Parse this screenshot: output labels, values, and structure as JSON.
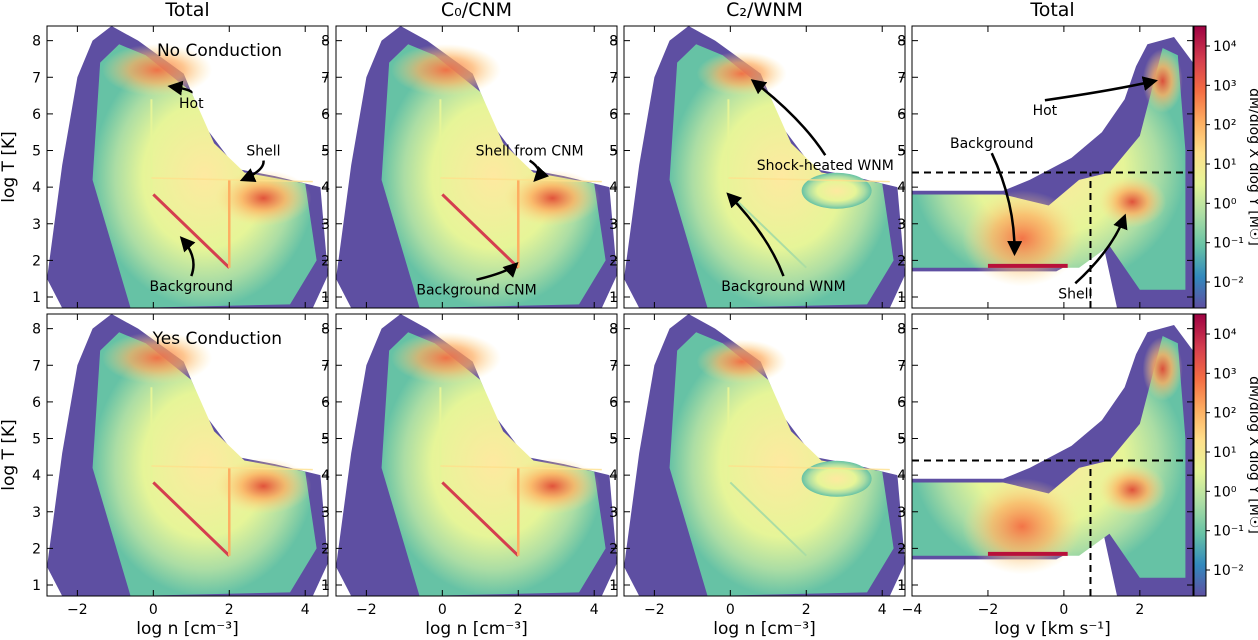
{
  "column_titles": [
    "Total",
    "C₀/CNM",
    "C₂/WNM",
    "Total"
  ],
  "row_titles": [
    "No Conduction",
    "Yes Conduction"
  ],
  "colors": {
    "background_purple": "#5e4fa2",
    "colormap": [
      "#5e4fa2",
      "#3288bd",
      "#66c2a5",
      "#abdda4",
      "#e6f598",
      "#fee08b",
      "#fdae61",
      "#f46d43",
      "#d53e4f",
      "#9e0142"
    ]
  },
  "chart_data": [
    {
      "type": "heatmap",
      "panel": "top-left",
      "title": "Total",
      "annotation_title": "No Conduction",
      "xlabel": "",
      "ylabel": "log T [K]",
      "xlim": [
        -2.8,
        4.6
      ],
      "ylim": [
        0.7,
        8.4
      ],
      "xticks": [
        -2,
        0,
        2,
        4
      ],
      "yticks": [
        1,
        2,
        3,
        4,
        5,
        6,
        7,
        8
      ],
      "annotations": [
        {
          "text": "Hot",
          "x": 1.0,
          "y": 6.3,
          "arrow_to": [
            0.45,
            6.75
          ]
        },
        {
          "text": "Shell",
          "x": 2.9,
          "y": 5.0,
          "arrow_to": [
            2.35,
            4.2
          ]
        },
        {
          "text": "Background",
          "x": 1.0,
          "y": 1.3,
          "arrow_to": [
            0.75,
            2.6
          ]
        }
      ]
    },
    {
      "type": "heatmap",
      "panel": "top-middle-left",
      "title": "C₀/CNM",
      "xlim": [
        -2.8,
        4.6
      ],
      "ylim": [
        0.7,
        8.4
      ],
      "xticks": [
        -2,
        0,
        2,
        4
      ],
      "yticks": [
        1,
        2,
        3,
        4,
        5,
        6,
        7,
        8
      ],
      "annotations": [
        {
          "text": "Shell from CNM",
          "x": 2.3,
          "y": 5.0,
          "arrow_to": [
            2.45,
            4.2
          ]
        },
        {
          "text": "Background CNM",
          "x": 0.9,
          "y": 1.2,
          "arrow_to": [
            1.95,
            1.9
          ]
        }
      ]
    },
    {
      "type": "heatmap",
      "panel": "top-middle-right",
      "title": "C₂/WNM",
      "xlim": [
        -2.8,
        4.6
      ],
      "ylim": [
        0.7,
        8.4
      ],
      "xticks": [
        -2,
        0,
        2,
        4
      ],
      "yticks": [
        1,
        2,
        3,
        4,
        5,
        6,
        7,
        8
      ],
      "annotations": [
        {
          "text": "Shock-heated WNM",
          "x": 2.5,
          "y": 4.6,
          "arrow_to": [
            0.6,
            6.9
          ]
        },
        {
          "text": "Background WNM",
          "x": 1.4,
          "y": 1.3,
          "arrow_to": [
            -0.05,
            3.8
          ]
        }
      ]
    },
    {
      "type": "heatmap",
      "panel": "top-right",
      "title": "Total",
      "xlim": [
        -4,
        3.4
      ],
      "ylim": [
        0.7,
        8.4
      ],
      "xticks": [
        -4,
        -2,
        0,
        2
      ],
      "yticks": [
        1,
        2,
        3,
        4,
        5,
        6,
        7,
        8
      ],
      "dashed_lines": {
        "y": 4.4,
        "x": 0.7
      },
      "annotations": [
        {
          "text": "Hot",
          "x": -0.5,
          "y": 6.1,
          "arrow_to": [
            2.4,
            6.9
          ]
        },
        {
          "text": "Background",
          "x": -1.9,
          "y": 5.2,
          "arrow_to": [
            -1.3,
            2.2
          ]
        },
        {
          "text": "Shell",
          "x": 0.3,
          "y": 1.1,
          "arrow_to": [
            1.6,
            3.2
          ]
        }
      ],
      "colorbar": {
        "label": "dM/dlog X dlog Y [M☉]",
        "scale": "log",
        "ticks": [
          "10⁻²",
          "10⁻¹",
          "10⁰",
          "10¹",
          "10²",
          "10³",
          "10⁴"
        ]
      }
    },
    {
      "type": "heatmap",
      "panel": "bottom-left",
      "annotation_title": "Yes Conduction",
      "xlabel": "log n [cm⁻³]",
      "ylabel": "log T [K]",
      "xlim": [
        -2.8,
        4.6
      ],
      "ylim": [
        0.7,
        8.4
      ],
      "xticks": [
        -2,
        0,
        2,
        4
      ],
      "yticks": [
        1,
        2,
        3,
        4,
        5,
        6,
        7,
        8
      ]
    },
    {
      "type": "heatmap",
      "panel": "bottom-middle-left",
      "xlabel": "log n [cm⁻³]",
      "xlim": [
        -2.8,
        4.6
      ],
      "ylim": [
        0.7,
        8.4
      ],
      "xticks": [
        -2,
        0,
        2,
        4
      ],
      "yticks": [
        1,
        2,
        3,
        4,
        5,
        6,
        7,
        8
      ]
    },
    {
      "type": "heatmap",
      "panel": "bottom-middle-right",
      "xlabel": "log n [cm⁻³]",
      "xlim": [
        -2.8,
        4.6
      ],
      "ylim": [
        0.7,
        8.4
      ],
      "xticks": [
        -2,
        0,
        2,
        4
      ],
      "yticks": [
        1,
        2,
        3,
        4,
        5,
        6,
        7,
        8
      ]
    },
    {
      "type": "heatmap",
      "panel": "bottom-right",
      "xlabel": "log v [km s⁻¹]",
      "xlim": [
        -4,
        3.4
      ],
      "ylim": [
        0.7,
        8.4
      ],
      "xticks": [
        -4,
        -2,
        0,
        2
      ],
      "yticks": [
        1,
        2,
        3,
        4,
        5,
        6,
        7,
        8
      ],
      "dashed_lines": {
        "y": 4.4,
        "x": 0.7
      },
      "colorbar": {
        "label": "dM/dlog X dlog Y [M☉]",
        "scale": "log",
        "ticks": [
          "10⁻²",
          "10⁻¹",
          "10⁰",
          "10¹",
          "10²",
          "10³",
          "10⁴"
        ]
      }
    }
  ]
}
